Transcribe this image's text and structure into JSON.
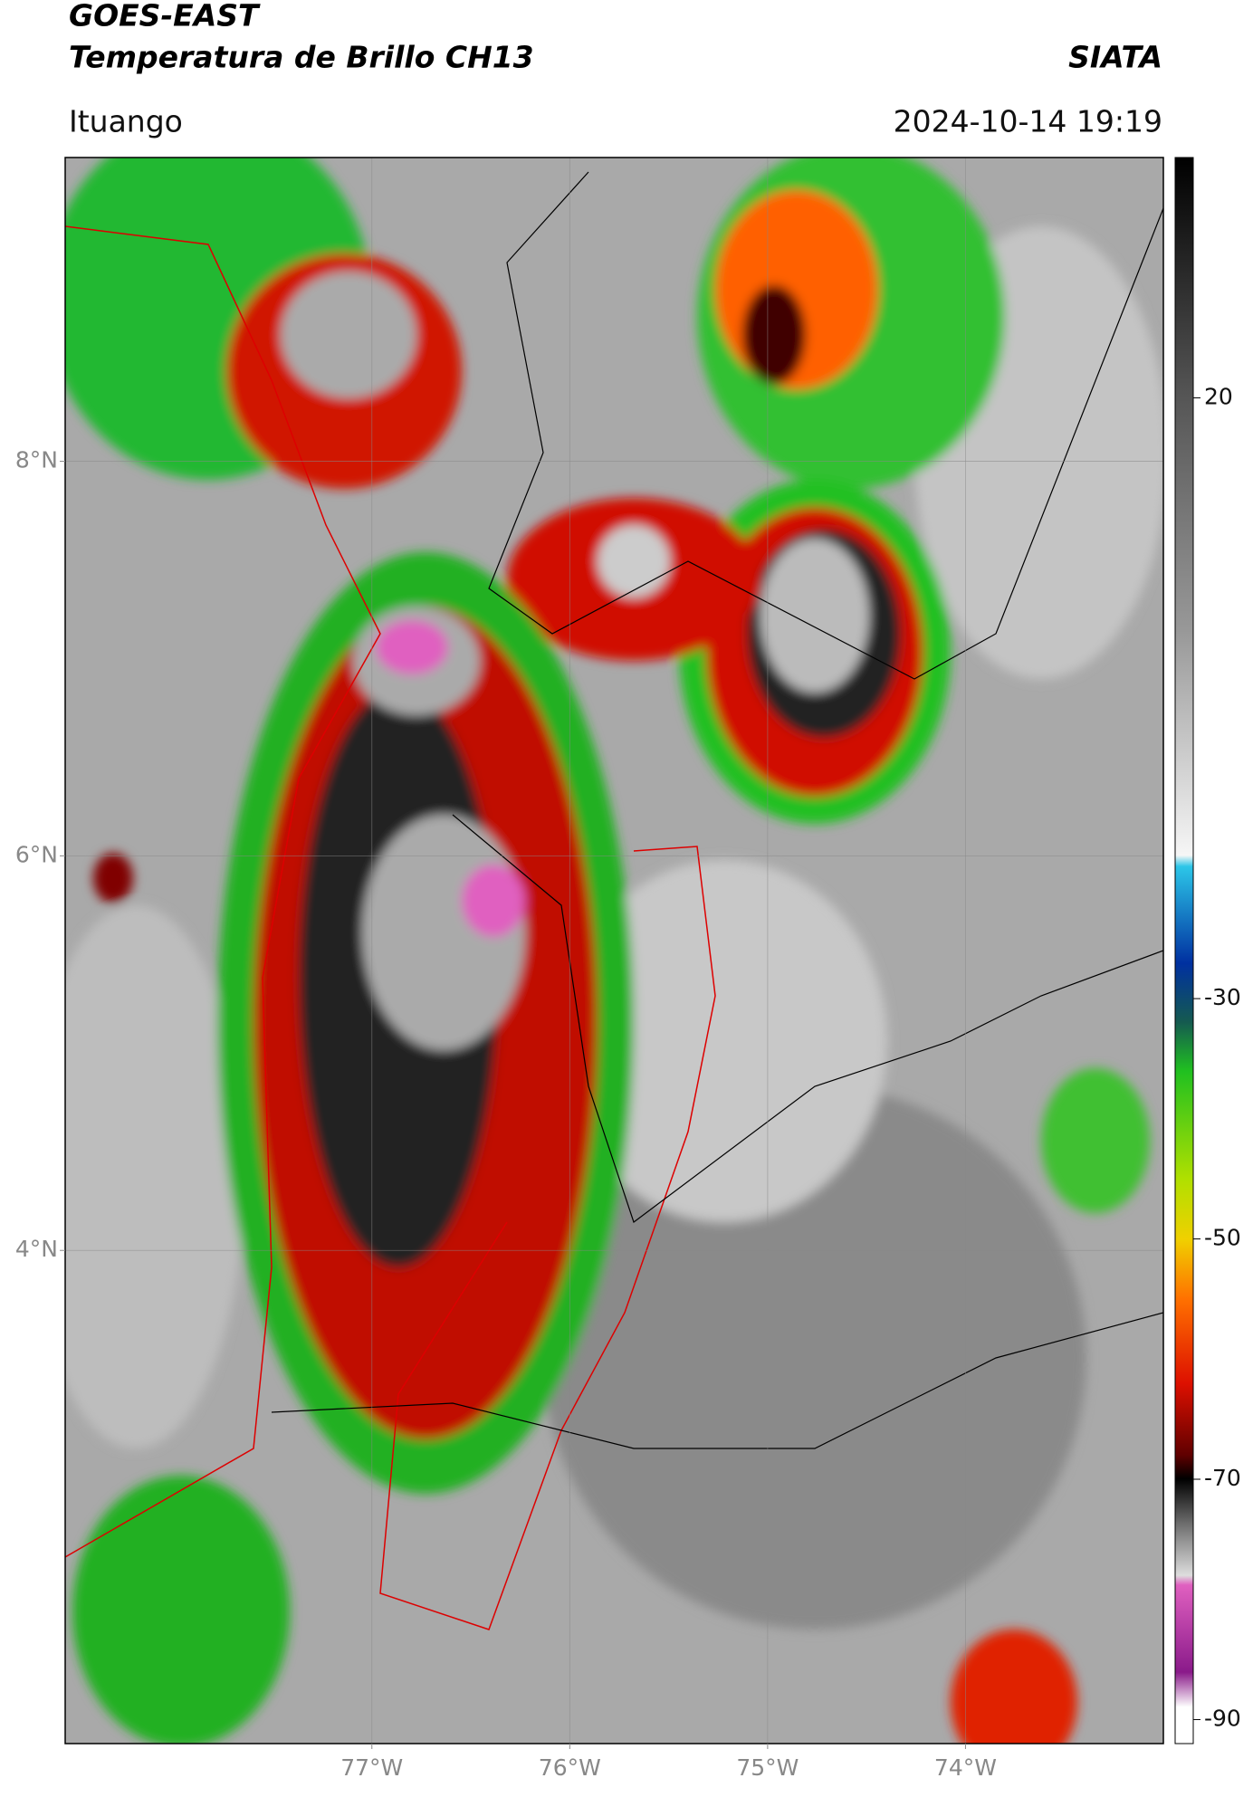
{
  "header": {
    "title_line1": "GOES-EAST",
    "title_line2": "Temperatura de Brillo CH13",
    "organization": "SIATA",
    "location": "Ituango",
    "datetime": "2024-10-14 19:19"
  },
  "map": {
    "xlim": [
      -78.55,
      -73.0
    ],
    "ylim": [
      1.5,
      9.54
    ],
    "xticks": [
      {
        "value": -77,
        "label": "77°W"
      },
      {
        "value": -76,
        "label": "76°W"
      },
      {
        "value": -75,
        "label": "75°W"
      },
      {
        "value": -74,
        "label": "74°W"
      }
    ],
    "yticks": [
      {
        "value": 8,
        "label": "8°N"
      },
      {
        "value": 6,
        "label": "6°N"
      },
      {
        "value": 4,
        "label": "4°N"
      }
    ],
    "grid": true
  },
  "colorbar": {
    "clim": [
      -92,
      40
    ],
    "ticks": [
      20,
      -30,
      -50,
      -70,
      -90
    ]
  }
}
